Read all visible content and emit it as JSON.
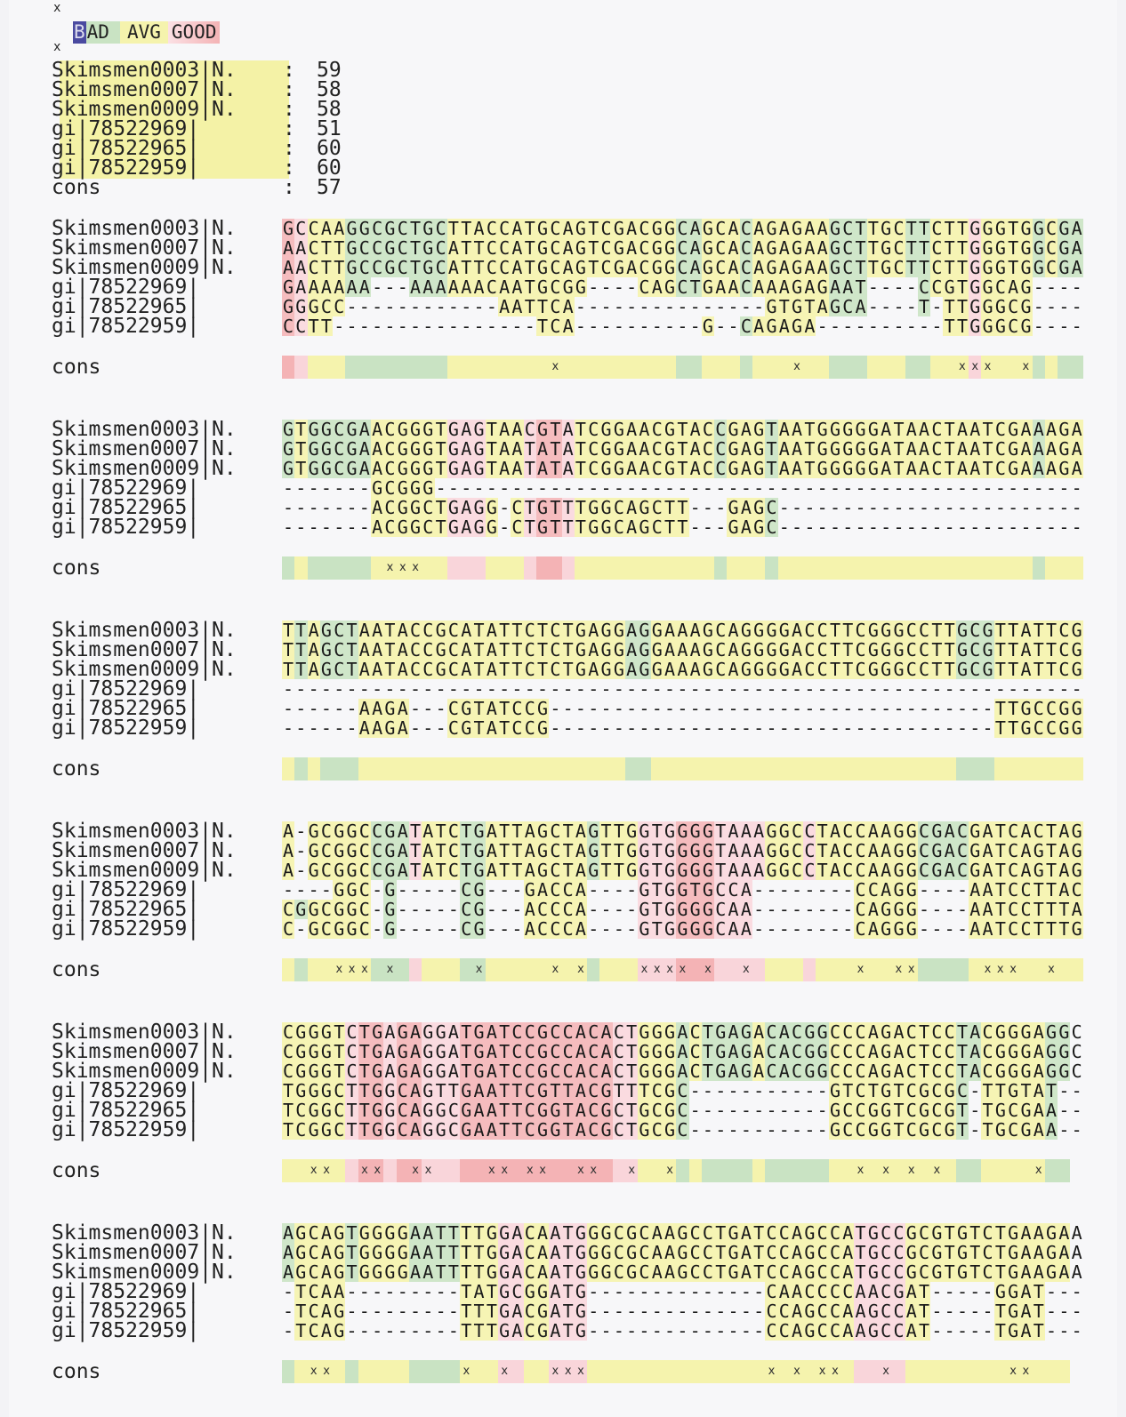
{
  "legend": {
    "top_marker": "x",
    "bottom_marker": "x",
    "b": "B",
    "ad": "AD",
    "avg": "AVG",
    "good": "GOOD"
  },
  "colors": {
    "bad": "#4a4aa0",
    "green": "#c9e3c3",
    "yellow": "#f5f3ad",
    "pink": "#f9d5da",
    "red": "#f4b3b5"
  },
  "scores": {
    "sep": ":",
    "rows": [
      {
        "name": "Skimsmen0003|N.",
        "score": "59"
      },
      {
        "name": "Skimsmen0007|N.",
        "score": "58"
      },
      {
        "name": "Skimsmen0009|N.",
        "score": "58"
      },
      {
        "name": "gi|78522969|",
        "score": "51"
      },
      {
        "name": "gi|78522965|",
        "score": "60"
      },
      {
        "name": "gi|78522959|",
        "score": "60"
      },
      {
        "name": "cons",
        "score": "57"
      }
    ]
  },
  "names": [
    "Skimsmen0003|N.",
    "Skimsmen0007|N.",
    "Skimsmen0009|N.",
    "gi|78522969|",
    "gi|78522965|",
    "gi|78522959|"
  ],
  "cons_label": "cons",
  "cons_mark": "x",
  "blocks": [
    {
      "seqs": [
        "GCCAAGGCGCTGCTTACCATGCAGTCGACGGCAGCACAGAGAAGCTTGCTTCTTGGGTGGCGA",
        "AACTTGCCGCTGCATTCCATGCAGTCGACGGCAGCACAGAGAAGCTTGCTTCTTGGGTGGCGA",
        "AACTTGCCGCTGCATTCCATGCAGTCGACGGCAGCACAGAGAAGCTTGCTTCTTGGGTGGCGA",
        "GAAAAAA---AAAAAACAATGCGG----CAGCTGAACAAAGAGAAT----CCGTGGCAG----",
        "GGGCC------------AATTCA---------------GTGTAGCA----T-TTGGGCG----",
        "CCTT----------------TCA----------G--CAGAGA----------TTGGGCG----"
      ],
      "cons_colors": "rpyyyggggggggyyyyyyyyyyyyyyyyyyggyyygyyyyyygggyyyggyyypyyyygygg",
      "marks": [
        21,
        40,
        53,
        54,
        55,
        58
      ]
    },
    {
      "seqs": [
        "GTGGCGAACGGGTGAGTAACGTATCGGAACGTACCGAGTAATGGGGGATAACTAATCGAAAGA",
        "GTGGCGAACGGGTGAGTAATATATCGGAACGTACCGAGTAATGGGGGATAACTAATCGAAAGA",
        "GTGGCGAACGGGTGAGTAATATATCGGAACGTACCGAGTAATGGGGGATAACTAATCGAAAGA",
        "-------GCGGG---------------------------------------------------",
        "-------ACGGCTGAGG-CTGTTTGGCAGCTT---GAGC------------------------",
        "-------ACGGCTGAGG-CTGTTTGGCAGCTT---GAGC------------------------"
      ],
      "cons_colors": "gygggggyyyyyypppyyyprrpyyyyyyyyyyygyyygyyyyyyyyyyyyyyyyyyyygyyy",
      "marks": [
        8,
        9,
        10
      ]
    },
    {
      "seqs": [
        "TTAGCTAATACCGCATATTCTCTGAGGAGGAAAGCAGGGGACCTTCGGGCCTTGCGTTATTCG",
        "TTAGCTAATACCGCATATTCTCTGAGGAGGAAAGCAGGGGACCTTCGGGCCTTGCGTTATTCG",
        "TTAGCTAATACCGCATATTCTCTGAGGAGGAAAGCAGGGGACCTTCGGGCCTTGCGTTATTCG",
        "---------------------------------------------------------------",
        "------AAGA---CGTATCCG-----------------------------------TTGCCGG",
        "------AAGA---CGTATCCG-----------------------------------TTGCCGG"
      ],
      "cons_colors": "ygygggyyyyyyyyyyyyyyyyyyyyyggyyyyyyyyyyyyyyyyyyyyyyyygggyyyyyyy",
      "marks": []
    },
    {
      "seqs": [
        "A-GCGGCCGATATCTGATTAGCTAGTTGGTGGGGTAAAGGCCTACCAAGGCGACGATCACTAG",
        "A-GCGGCCGATATCTGATTAGCTAGTTGGTGGGGTAAAGGCCTACCAAGGCGACGATCAGTAG",
        "A-GCGGCCGATATCTGATTAGCTAGTTGGTGGGGTAAAGGCCTACCAAGGCGACGATCAGTAG",
        "----GGC-G-----CG---GACCA----GTGGTGCCA--------CCAGG----AATCCTTAC",
        "CGGCGGC-G-----CG---ACCCA----GTGGGGCAA--------CAGGG----AATCCTTTA",
        "C-GCGGC-G-----CG---ACCCA----GTGGGGCAA--------CAGGG----AATCCTTTG"
      ],
      "cons_colors": "ygyyyyygggpyyyggyyyyyyyygyyyppprrrppppyyypyyyyyyyyggggyyyyyyyyy",
      "marks": [
        4,
        5,
        6,
        8,
        15,
        21,
        23,
        28,
        29,
        30,
        31,
        33,
        36,
        45,
        48,
        49,
        55,
        56,
        57,
        60
      ]
    },
    {
      "seqs": [
        "CGGGTCTGAGAGGATGATCCGCCACACTGGGACTGAGACACGGCCCAGACTCCTACGGGAGGC",
        "CGGGTCTGAGAGGATGATCCGCCACACTGGGACTGAGACACGGCCCAGACTCCTACGGGAGGC",
        "CGGGTCTGAGAGGATGATCCGCCACACTGGGACTGAGACACGGCCCAGACTCCTACGGGAGGC",
        "TGGGCTTGGCAGTTGAATTCGTTACGTTTCGC-----------GTCTGTCGCGC-TTGTAT--",
        "TCGGCTTGGCAGGCGAATTCGGTACGCTGCGC-----------GCCGGTCGCGT-TGCGAA--",
        "TCGGCTTGGCAGGCGAATTCGGTACGCTGCGC-----------GCCGGTCGCGT-TGCGAA--"
      ],
      "cons_colors": "yyyyyprrprrppprrrrrrrrrrrrppyyygyggggygggggyyyyyyyyyyggyyyyygg",
      "marks": [
        2,
        3,
        6,
        7,
        10,
        11,
        16,
        17,
        19,
        20,
        23,
        24,
        27,
        30,
        45,
        47,
        49,
        51,
        59
      ]
    },
    {
      "seqs": [
        "AGCAGTGGGGAATTTTGGACAATGGGCGCAAGCCTGATCCAGCCATGCCGCGTGTCTGAAGAA",
        "AGCAGTGGGGAATTTTGGACAATGGGCGCAAGCCTGATCCAGCCATGCCGCGTGTCTGAAGAA",
        "AGCAGTGGGGAATTTTGGACAATGGGCGCAAGCCTGATCCAGCCATGCCGCGTGTCTGAAGAA",
        "-TCAA---------TATGCGGATG--------------CAACCCCAACGAT-----GGAT---",
        "-TCAG---------TTTGACGATG--------------CCAGCCAAGCCAT-----TGAT---",
        "-TCAG---------TTTGACGATG--------------CCAGCCAAGCCAT-----TGAT---"
      ],
      "cons_colors": "gyyyygyyyyggggyyyppyypppyyyyyyyyyyyyyyyyyyyyyppppyyyyyyyyyyyyy",
      "marks": [
        2,
        3,
        14,
        17,
        21,
        22,
        23,
        38,
        40,
        42,
        43,
        47,
        57,
        58
      ]
    }
  ]
}
